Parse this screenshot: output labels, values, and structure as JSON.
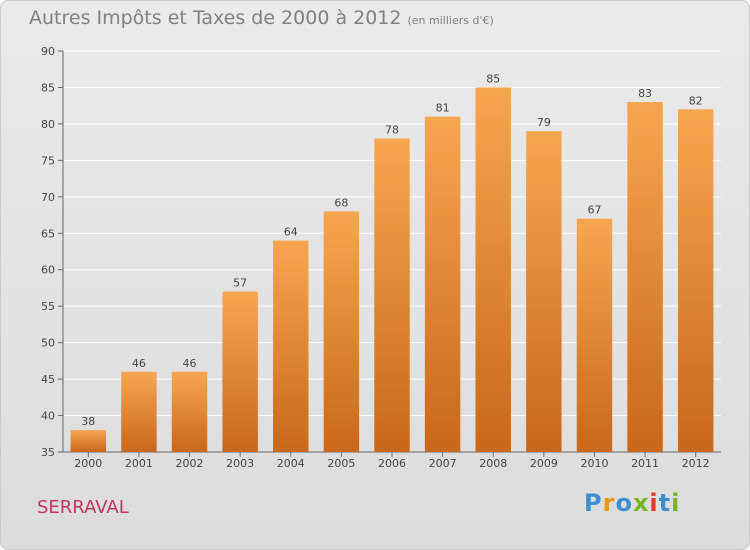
{
  "header": {
    "title": "Autres Impôts et Taxes de 2000 à 2012",
    "subtitle": "(en milliers d'€)"
  },
  "footer": {
    "commune": "SERRAVAL",
    "logo_text": "Proxiti"
  },
  "colors": {
    "bar_light": "#f7a650",
    "bar_dark": "#c9671a",
    "grid": "#ffffff",
    "commune": "#c0375e",
    "logo": [
      "#3a8fd0",
      "#e9921a",
      "#3a8fd0",
      "#7ab51d",
      "#e23a2e",
      "#3a8fd0",
      "#7ab51d"
    ]
  },
  "chart_data": {
    "type": "bar",
    "title": "Autres Impôts et Taxes de 2000 à 2012",
    "subtitle": "(en milliers d'€)",
    "categories": [
      "2000",
      "2001",
      "2002",
      "2003",
      "2004",
      "2005",
      "2006",
      "2007",
      "2008",
      "2009",
      "2010",
      "2011",
      "2012"
    ],
    "values": [
      38,
      46,
      46,
      57,
      64,
      68,
      78,
      81,
      85,
      79,
      67,
      83,
      82
    ],
    "ylim": [
      35,
      90
    ],
    "yticks": [
      35,
      40,
      45,
      50,
      55,
      60,
      65,
      70,
      75,
      80,
      85,
      90
    ],
    "grid": true,
    "data_labels": true
  }
}
